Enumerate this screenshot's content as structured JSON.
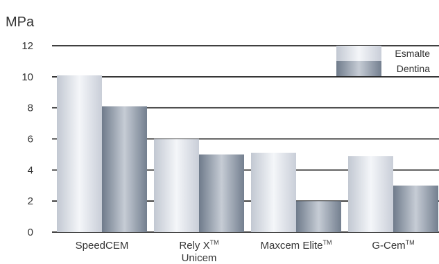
{
  "chart_data": {
    "type": "bar",
    "ylabel": "MPa",
    "ylim": [
      0,
      12
    ],
    "yticks": [
      0,
      2,
      4,
      6,
      8,
      10,
      12
    ],
    "grid": true,
    "legend_position": "top-right",
    "categories": [
      {
        "main": "SpeedCEM",
        "tm": "",
        "second": ""
      },
      {
        "main": "Rely X",
        "tm": "TM",
        "second": "Unicem"
      },
      {
        "main": "Maxcem Elite",
        "tm": "TM",
        "second": ""
      },
      {
        "main": "G-Cem",
        "tm": "TM",
        "second": ""
      }
    ],
    "series": [
      {
        "name": "Esmalte",
        "values": [
          10.1,
          6.0,
          5.1,
          4.9
        ]
      },
      {
        "name": "Dentina",
        "values": [
          8.1,
          5.0,
          2.0,
          3.0
        ]
      }
    ],
    "colors": {
      "esmalte": [
        "#c2c8d2",
        "#f4f6f9",
        "#c9ced8"
      ],
      "dentina": [
        "#6f7b8b",
        "#c6ccd5",
        "#737f8f"
      ],
      "grid": "#000000",
      "text": "#333333"
    }
  }
}
